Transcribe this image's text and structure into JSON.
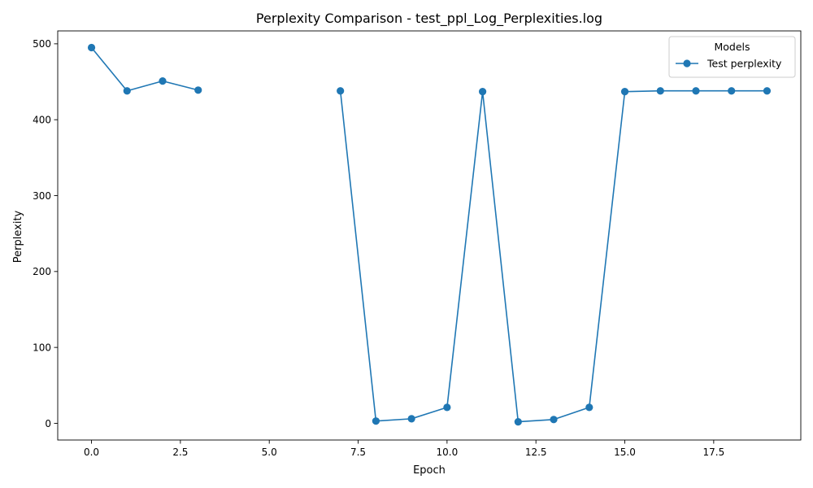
{
  "chart_data": {
    "type": "line",
    "title": "Perplexity Comparison - test_ppl_Log_Perplexities.log",
    "xlabel": "Epoch",
    "ylabel": "Perplexity",
    "xlim": [
      -0.95,
      19.95
    ],
    "ylim": [
      -22,
      517
    ],
    "xticks": [
      0.0,
      2.5,
      5.0,
      7.5,
      10.0,
      12.5,
      15.0,
      17.5
    ],
    "xtick_labels": [
      "0.0",
      "2.5",
      "5.0",
      "7.5",
      "10.0",
      "12.5",
      "15.0",
      "17.5"
    ],
    "yticks": [
      0,
      100,
      200,
      300,
      400,
      500
    ],
    "ytick_labels": [
      "0",
      "100",
      "200",
      "300",
      "400",
      "500"
    ],
    "grid": false,
    "legend": {
      "title": "Models",
      "placement": "top-right"
    },
    "series": [
      {
        "name": "Test perplexity",
        "color": "#1f77b4",
        "marker": "circle",
        "segments": [
          {
            "x": [
              0,
              1,
              2,
              3
            ],
            "y": [
              495,
              438,
              451,
              439
            ]
          },
          {
            "x": [
              7,
              8,
              9,
              10,
              11,
              12,
              13,
              14,
              15,
              16,
              17,
              18,
              19
            ],
            "y": [
              438,
              3,
              6,
              21,
              437,
              2,
              5,
              21,
              437,
              438,
              438,
              438,
              438
            ]
          }
        ]
      }
    ]
  }
}
